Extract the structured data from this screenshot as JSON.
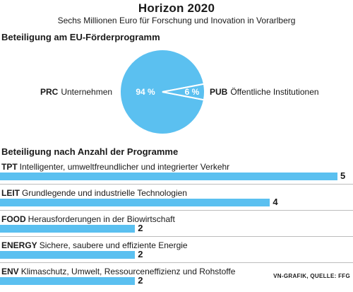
{
  "header": {
    "title": "Horizon 2020",
    "subtitle": "Sechs Millionen Euro für Forschung und Inovation in Vorarlberg"
  },
  "sections": {
    "pie_heading": "Beteiligung am EU-Förderprogramm",
    "bar_heading": "Beteiligung nach Anzahl der Programme"
  },
  "source": "VN-GRAFIK, QUELLE: FFG",
  "colors": {
    "accent": "#5bc0f0",
    "text": "#1a1a1a",
    "slice_label": "#ffffff"
  },
  "chart_data": [
    {
      "type": "pie",
      "slices": [
        {
          "code": "PRC",
          "label": "Unternehmen",
          "value": 94,
          "value_label": "94 %"
        },
        {
          "code": "PUB",
          "label": "Öffentliche Institutionen",
          "value": 6,
          "value_label": "6 %"
        }
      ]
    },
    {
      "type": "bar",
      "categories": [
        {
          "code": "TPT",
          "label": "Intelligenter, umweltfreundlicher und integrierter Verkehr"
        },
        {
          "code": "LEIT",
          "label": "Grundlegende und industrielle Technologien"
        },
        {
          "code": "FOOD",
          "label": "Herausforderungen in der Biowirtschaft"
        },
        {
          "code": "ENERGY",
          "label": "Sichere, saubere und effiziente Energie"
        },
        {
          "code": "ENV",
          "label": "Klimaschutz, Umwelt, Ressourceneffizienz und Rohstoffe"
        }
      ],
      "values": [
        5,
        4,
        2,
        2,
        2
      ],
      "value_labels": [
        "5",
        "4",
        "2",
        "2",
        "2"
      ]
    }
  ]
}
